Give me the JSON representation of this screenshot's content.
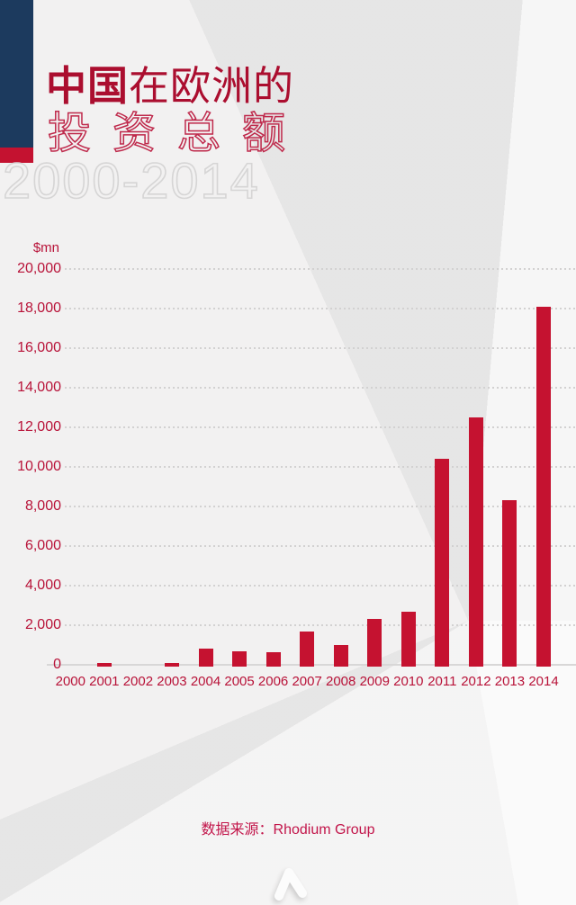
{
  "header": {
    "title_line1_bold": "中国",
    "title_line1_rest": "在欧洲的",
    "title_line2": "投资总额",
    "title_years": "2000-2014",
    "accent_navy_color": "#1c3a5e",
    "accent_red_color": "#c41230"
  },
  "chart_data": {
    "type": "bar",
    "title": "中国在欧洲的投资总额 2000-2014",
    "unit_label": "$mn",
    "categories": [
      "2000",
      "2001",
      "2002",
      "2003",
      "2004",
      "2005",
      "2006",
      "2007",
      "2008",
      "2009",
      "2010",
      "2011",
      "2012",
      "2013",
      "2014"
    ],
    "values": [
      0,
      100,
      0,
      100,
      800,
      700,
      650,
      1700,
      1000,
      2300,
      2700,
      10400,
      12500,
      8300,
      18100
    ],
    "ylim": [
      0,
      20000
    ],
    "ytick_step": 2000,
    "ytick_labels": [
      "20,000",
      "18,000",
      "16,000",
      "14,000",
      "12,000",
      "10,000",
      "8,000",
      "6,000",
      "4,000",
      "2,000",
      "0"
    ],
    "bar_color": "#c51230",
    "axis_text_color": "#b81238",
    "gridline_style": "dotted",
    "legend": "none"
  },
  "footer": {
    "source": "数据来源：Rhodium Group"
  },
  "icons": {
    "chevron": "chevron-up"
  }
}
